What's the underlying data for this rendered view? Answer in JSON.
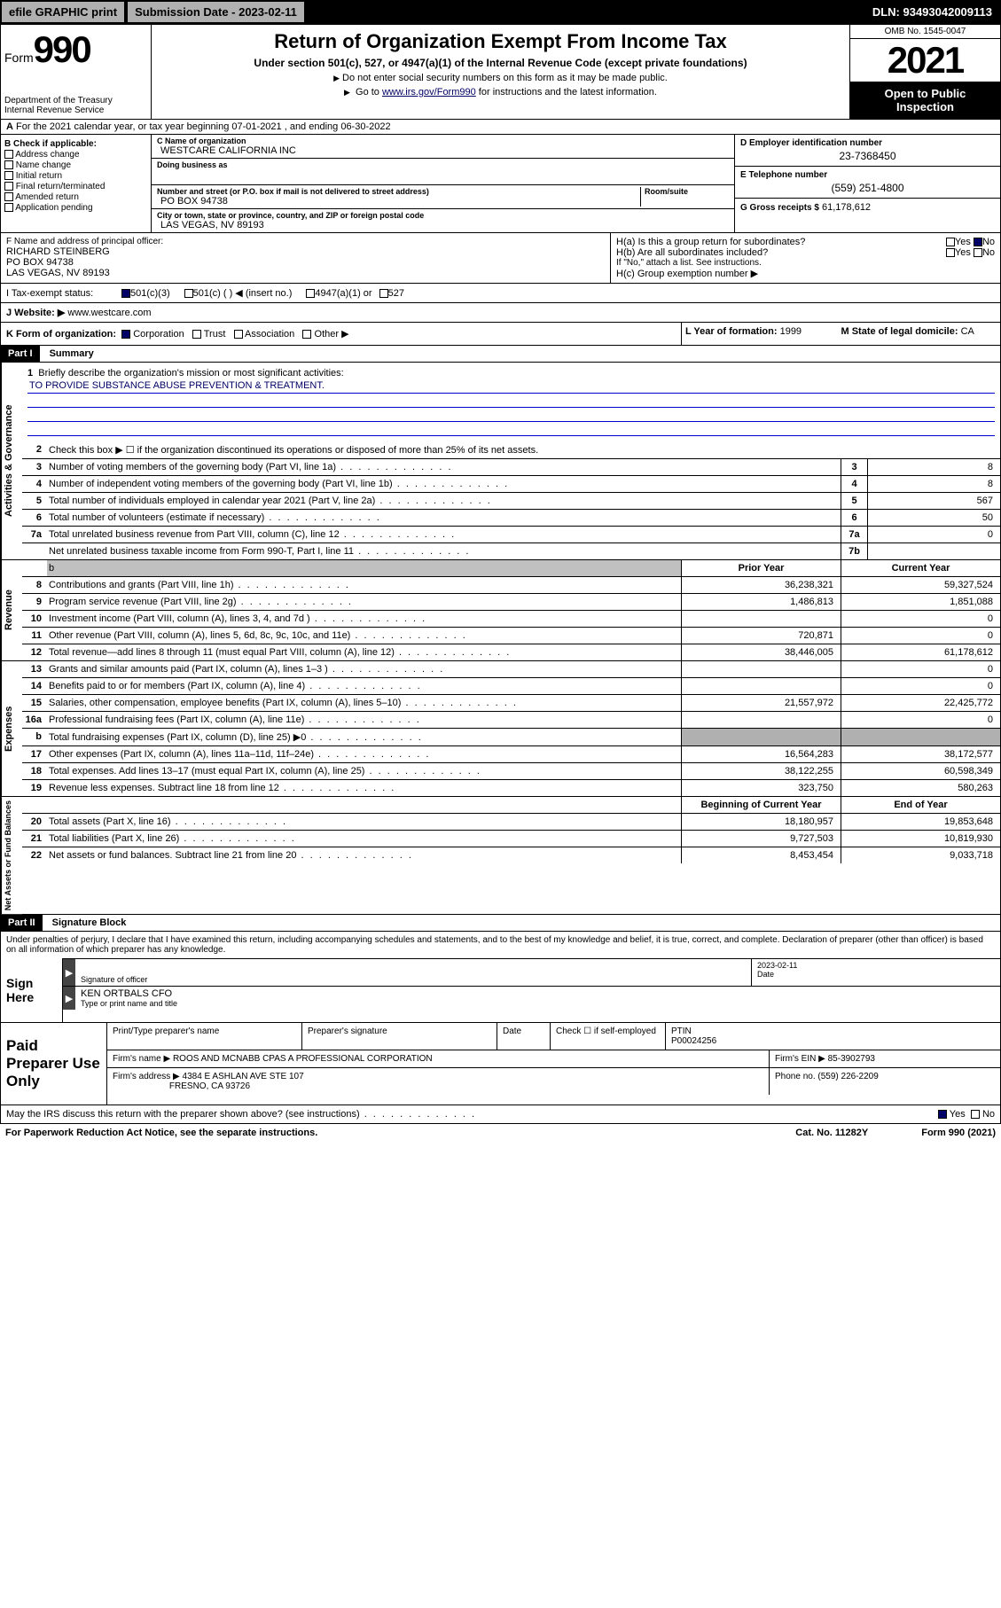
{
  "topbar": {
    "efile": "efile GRAPHIC print",
    "submission": "Submission Date - 2023-02-11",
    "dln": "DLN: 93493042009113"
  },
  "header": {
    "form_word": "Form",
    "form_num": "990",
    "dept": "Department of the Treasury",
    "irs": "Internal Revenue Service",
    "title": "Return of Organization Exempt From Income Tax",
    "subtitle": "Under section 501(c), 527, or 4947(a)(1) of the Internal Revenue Code (except private foundations)",
    "line1": "Do not enter social security numbers on this form as it may be made public.",
    "line2_pre": "Go to ",
    "line2_link": "www.irs.gov/Form990",
    "line2_post": " for instructions and the latest information.",
    "omb": "OMB No. 1545-0047",
    "year": "2021",
    "open": "Open to Public Inspection"
  },
  "line_a": "For the 2021 calendar year, or tax year beginning 07-01-2021   , and ending 06-30-2022",
  "b": {
    "label": "B Check if applicable:",
    "items": [
      "Address change",
      "Name change",
      "Initial return",
      "Final return/terminated",
      "Amended return",
      "Application pending"
    ]
  },
  "c": {
    "name_label": "C Name of organization",
    "name": "WESTCARE CALIFORNIA INC",
    "dba_label": "Doing business as",
    "dba": "",
    "addr_label": "Number and street (or P.O. box if mail is not delivered to street address)",
    "room_label": "Room/suite",
    "addr": "PO BOX 94738",
    "city_label": "City or town, state or province, country, and ZIP or foreign postal code",
    "city": "LAS VEGAS, NV  89193"
  },
  "d": {
    "ein_label": "D Employer identification number",
    "ein": "23-7368450",
    "tel_label": "E Telephone number",
    "tel": "(559) 251-4800",
    "gross_label": "G Gross receipts $",
    "gross": "61,178,612"
  },
  "f": {
    "label": "F  Name and address of principal officer:",
    "name": "RICHARD STEINBERG",
    "addr1": "PO BOX 94738",
    "addr2": "LAS VEGAS, NV  89193"
  },
  "h": {
    "ha": "H(a)  Is this a group return for subordinates?",
    "hb": "H(b)  Are all subordinates included?",
    "hb_note": "If \"No,\" attach a list. See instructions.",
    "hc": "H(c)  Group exemption number ▶",
    "yes": "Yes",
    "no": "No"
  },
  "i": {
    "label": "I   Tax-exempt status:",
    "opt1": "501(c)(3)",
    "opt2": "501(c) (  ) ◀ (insert no.)",
    "opt3": "4947(a)(1) or",
    "opt4": "527"
  },
  "j": {
    "label": "J   Website: ▶",
    "url": "www.westcare.com"
  },
  "k": {
    "label": "K Form of organization:",
    "opts": [
      "Corporation",
      "Trust",
      "Association",
      "Other ▶"
    ]
  },
  "l": {
    "label": "L Year of formation:",
    "val": "1999"
  },
  "m": {
    "label": "M State of legal domicile:",
    "val": "CA"
  },
  "part1_header": "Part I",
  "part1_title": "Summary",
  "side_labels": [
    "Activities & Governance",
    "Revenue",
    "Expenses",
    "Net Assets or Fund Balances"
  ],
  "briefly": {
    "num": "1",
    "text": "Briefly describe the organization's mission or most significant activities:",
    "mission": "TO PROVIDE SUBSTANCE ABUSE PREVENTION & TREATMENT."
  },
  "line2": "Check this box ▶ ☐  if the organization discontinued its operations or disposed of more than 25% of its net assets.",
  "rows_gov": [
    {
      "num": "3",
      "text": "Number of voting members of the governing body (Part VI, line 1a)",
      "box": "3",
      "val": "8"
    },
    {
      "num": "4",
      "text": "Number of independent voting members of the governing body (Part VI, line 1b)",
      "box": "4",
      "val": "8"
    },
    {
      "num": "5",
      "text": "Total number of individuals employed in calendar year 2021 (Part V, line 2a)",
      "box": "5",
      "val": "567"
    },
    {
      "num": "6",
      "text": "Total number of volunteers (estimate if necessary)",
      "box": "6",
      "val": "50"
    },
    {
      "num": "7a",
      "text": "Total unrelated business revenue from Part VIII, column (C), line 12",
      "box": "7a",
      "val": "0"
    },
    {
      "num": "",
      "text": "Net unrelated business taxable income from Form 990-T, Part I, line 11",
      "box": "7b",
      "val": ""
    }
  ],
  "col_headers": {
    "prior": "Prior Year",
    "current": "Current Year",
    "begin": "Beginning of Current Year",
    "end": "End of Year"
  },
  "rows_rev": [
    {
      "num": "8",
      "text": "Contributions and grants (Part VIII, line 1h)",
      "prior": "36,238,321",
      "cur": "59,327,524"
    },
    {
      "num": "9",
      "text": "Program service revenue (Part VIII, line 2g)",
      "prior": "1,486,813",
      "cur": "1,851,088"
    },
    {
      "num": "10",
      "text": "Investment income (Part VIII, column (A), lines 3, 4, and 7d )",
      "prior": "",
      "cur": "0"
    },
    {
      "num": "11",
      "text": "Other revenue (Part VIII, column (A), lines 5, 6d, 8c, 9c, 10c, and 11e)",
      "prior": "720,871",
      "cur": "0"
    },
    {
      "num": "12",
      "text": "Total revenue—add lines 8 through 11 (must equal Part VIII, column (A), line 12)",
      "prior": "38,446,005",
      "cur": "61,178,612"
    }
  ],
  "rows_exp": [
    {
      "num": "13",
      "text": "Grants and similar amounts paid (Part IX, column (A), lines 1–3 )",
      "prior": "",
      "cur": "0"
    },
    {
      "num": "14",
      "text": "Benefits paid to or for members (Part IX, column (A), line 4)",
      "prior": "",
      "cur": "0"
    },
    {
      "num": "15",
      "text": "Salaries, other compensation, employee benefits (Part IX, column (A), lines 5–10)",
      "prior": "21,557,972",
      "cur": "22,425,772"
    },
    {
      "num": "16a",
      "text": "Professional fundraising fees (Part IX, column (A), line 11e)",
      "prior": "",
      "cur": "0"
    },
    {
      "num": "b",
      "text": "Total fundraising expenses (Part IX, column (D), line 25) ▶0",
      "prior": "grey",
      "cur": "grey"
    },
    {
      "num": "17",
      "text": "Other expenses (Part IX, column (A), lines 11a–11d, 11f–24e)",
      "prior": "16,564,283",
      "cur": "38,172,577"
    },
    {
      "num": "18",
      "text": "Total expenses. Add lines 13–17 (must equal Part IX, column (A), line 25)",
      "prior": "38,122,255",
      "cur": "60,598,349"
    },
    {
      "num": "19",
      "text": "Revenue less expenses. Subtract line 18 from line 12",
      "prior": "323,750",
      "cur": "580,263"
    }
  ],
  "rows_net": [
    {
      "num": "20",
      "text": "Total assets (Part X, line 16)",
      "prior": "18,180,957",
      "cur": "19,853,648"
    },
    {
      "num": "21",
      "text": "Total liabilities (Part X, line 26)",
      "prior": "9,727,503",
      "cur": "10,819,930"
    },
    {
      "num": "22",
      "text": "Net assets or fund balances. Subtract line 21 from line 20",
      "prior": "8,453,454",
      "cur": "9,033,718"
    }
  ],
  "part2_header": "Part II",
  "part2_title": "Signature Block",
  "sig_declare": "Under penalties of perjury, I declare that I have examined this return, including accompanying schedules and statements, and to the best of my knowledge and belief, it is true, correct, and complete. Declaration of preparer (other than officer) is based on all information of which preparer has any knowledge.",
  "sign_here": "Sign Here",
  "sig": {
    "sig_label": "Signature of officer",
    "date_label": "Date",
    "date_val": "2023-02-11",
    "name": "KEN ORTBALS CFO",
    "name_label": "Type or print name and title"
  },
  "paid_label": "Paid Preparer Use Only",
  "paid": {
    "r1c1": "Print/Type preparer's name",
    "r1c2": "Preparer's signature",
    "r1c3": "Date",
    "r1c4_pre": "Check ☐ if self-employed",
    "r1c5": "PTIN",
    "r1c5_val": "P00024256",
    "r2c1": "Firm's name    ▶",
    "r2c1_val": "ROOS AND MCNABB CPAS A PROFESSIONAL CORPORATION",
    "r2c2": "Firm's EIN ▶",
    "r2c2_val": "85-3902793",
    "r3c1": "Firm's address ▶",
    "r3c1_val": "4384 E ASHLAN AVE STE 107",
    "r3c1_val2": "FRESNO, CA  93726",
    "r3c2": "Phone no.",
    "r3c2_val": "(559) 226-2209"
  },
  "may_discuss": "May the IRS discuss this return with the preparer shown above? (see instructions)",
  "footer": {
    "left": "For Paperwork Reduction Act Notice, see the separate instructions.",
    "mid": "Cat. No. 11282Y",
    "right": "Form 990 (2021)"
  }
}
